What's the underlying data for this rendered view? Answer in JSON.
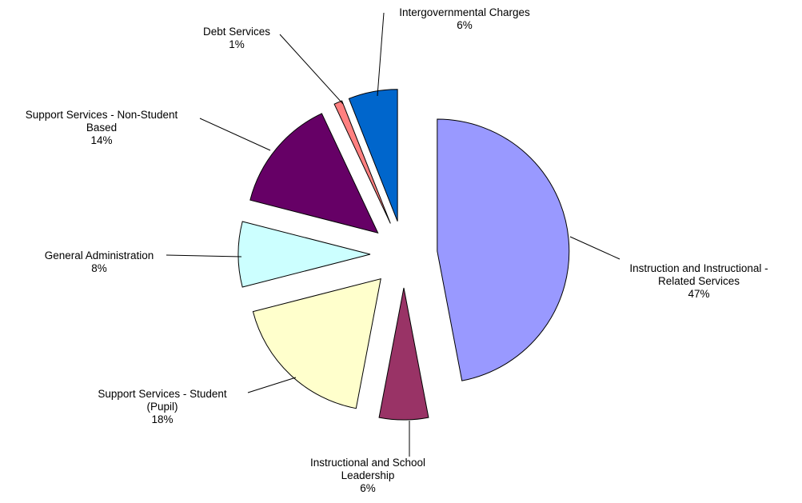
{
  "chart_data": {
    "type": "pie",
    "title": "",
    "exploded": true,
    "slices": [
      {
        "label": "Instruction and Instructional - Related Services",
        "label_lines": [
          "Instruction and Instructional -",
          "Related Services"
        ],
        "value": 47,
        "value_label": "47%",
        "color": "#9999FF"
      },
      {
        "label": "Instructional and School Leadership",
        "label_lines": [
          "Instructional and School",
          "Leadership"
        ],
        "value": 6,
        "value_label": "6%",
        "color": "#993366"
      },
      {
        "label": "Support Services - Student (Pupil)",
        "label_lines": [
          "Support Services - Student",
          "(Pupil)"
        ],
        "value": 18,
        "value_label": "18%",
        "color": "#FFFFCC"
      },
      {
        "label": "General Administration",
        "label_lines": [
          "General Administration"
        ],
        "value": 8,
        "value_label": "8%",
        "color": "#CCFFFF"
      },
      {
        "label": "Support Services - Non-Student Based",
        "label_lines": [
          "Support Services - Non-Student",
          "Based"
        ],
        "value": 14,
        "value_label": "14%",
        "color": "#660066"
      },
      {
        "label": "Debt Services",
        "label_lines": [
          "Debt Services"
        ],
        "value": 1,
        "value_label": "1%",
        "color": "#FF8080"
      },
      {
        "label": "Intergovernmental Charges",
        "label_lines": [
          "Intergovernmental Charges"
        ],
        "value": 6,
        "value_label": "6%",
        "color": "#0066CC"
      }
    ]
  }
}
